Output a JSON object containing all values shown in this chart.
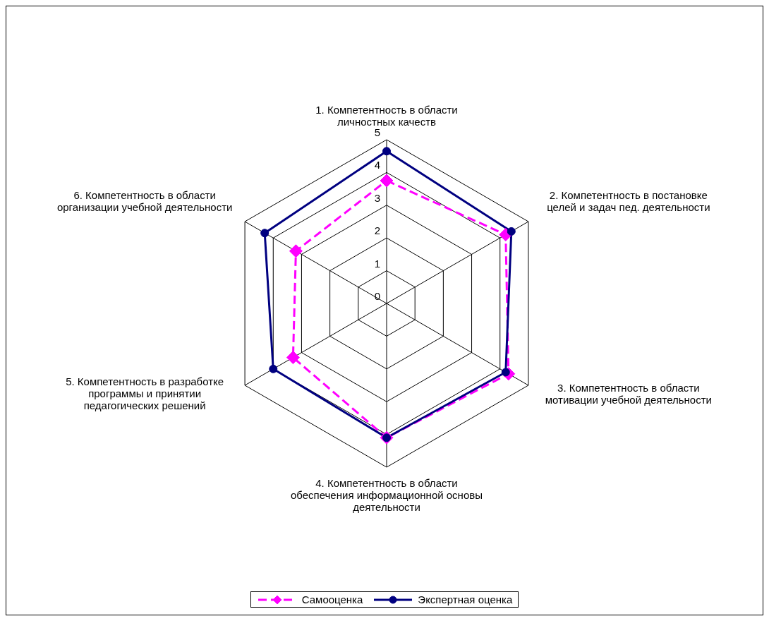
{
  "chart_data": {
    "type": "radar",
    "categories": [
      "1. Компетентность в области личностных качеств",
      "2. Компетентность в постановке целей и задач пед. деятельности",
      "3. Компетентность в области мотивации учебной деятельности",
      "4. Компетентность в области обеспечения информационной основы деятельности",
      "5. Компетентность в разработке программы и принятии педагогических решений",
      "6. Компетентность в области организации учебной деятельности"
    ],
    "series": [
      {
        "name": "Самооценка",
        "color": "#ff00ff",
        "values": [
          3.75,
          4.2,
          4.3,
          4.1,
          3.3,
          3.2
        ],
        "marker": "diamond",
        "line_style": "dashed"
      },
      {
        "name": "Экспертная оценка",
        "color": "#000080",
        "values": [
          4.65,
          4.4,
          4.2,
          4.1,
          4.0,
          4.3
        ],
        "marker": "circle",
        "line_style": "solid"
      }
    ],
    "ylim": [
      0,
      5
    ],
    "yticks": [
      0,
      1,
      2,
      3,
      4,
      5
    ],
    "grid": true,
    "legend": "bottom"
  }
}
